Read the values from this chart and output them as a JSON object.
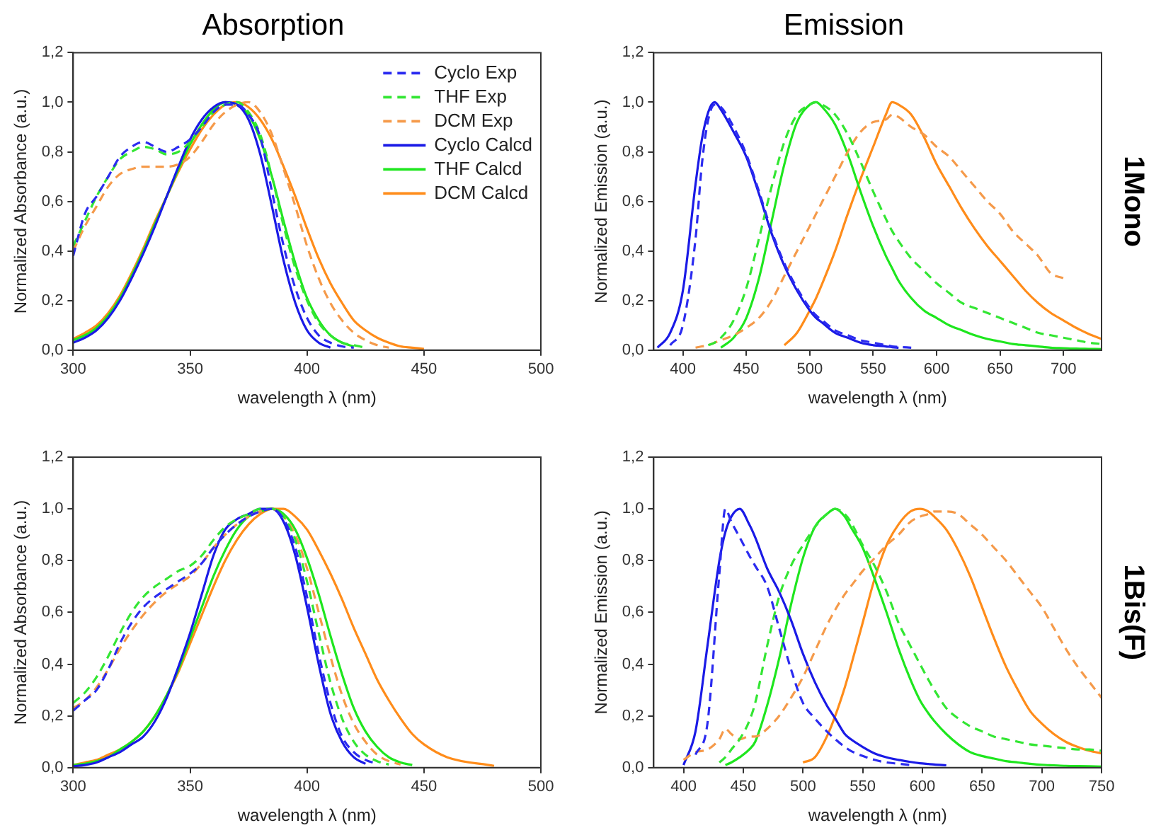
{
  "chart_data": [
    {
      "type": "line",
      "title": "Absorption",
      "xlabel": "wavelength λ (nm)",
      "ylabel": "Normalized Absorbance (a.u.)",
      "legend": "top right",
      "marker": "none",
      "xlim": [
        300,
        500
      ],
      "xticks": [
        300,
        350,
        400,
        450,
        500
      ],
      "ylim": [
        0,
        1.2
      ],
      "yticks": [
        {
          "value": 0,
          "label": "0,0"
        },
        {
          "value": 0.2,
          "label": "0,2"
        },
        {
          "value": 0.4,
          "label": "0,4"
        },
        {
          "value": 0.6,
          "label": "0,6"
        },
        {
          "value": 0.8,
          "label": "0,8"
        },
        {
          "value": 1,
          "label": "1,0"
        },
        {
          "value": 1.2,
          "label": "1,2"
        }
      ],
      "x": [
        300,
        305,
        310,
        315,
        320,
        325,
        330,
        335,
        340,
        345,
        350,
        355,
        360,
        365,
        370,
        375,
        380,
        385,
        390,
        395,
        400,
        405,
        410,
        415,
        420,
        425,
        430,
        435,
        440,
        445,
        450
      ],
      "series": [
        {
          "name": "Cyclo Exp",
          "color": "#2b2bf0",
          "line_style": "dashed",
          "values": [
            0.38,
            0.55,
            0.62,
            0.7,
            0.78,
            0.82,
            0.84,
            0.82,
            0.8,
            0.82,
            0.85,
            0.9,
            0.96,
            0.99,
            0.99,
            0.95,
            0.86,
            0.64,
            0.42,
            0.25,
            0.13,
            0.06,
            0.03,
            0.015,
            0.01,
            null,
            null,
            null,
            null,
            null,
            null
          ]
        },
        {
          "name": "THF Exp",
          "color": "#33e633",
          "line_style": "dashed",
          "values": [
            0.42,
            0.52,
            0.62,
            0.7,
            0.77,
            0.8,
            0.82,
            0.81,
            0.79,
            0.8,
            0.84,
            0.9,
            0.96,
            0.99,
            1.0,
            0.96,
            0.87,
            0.7,
            0.5,
            0.33,
            0.2,
            0.11,
            0.06,
            0.03,
            0.02,
            0.01,
            null,
            null,
            null,
            null,
            null
          ]
        },
        {
          "name": "DCM Exp",
          "color": "#f59a4a",
          "line_style": "dashed",
          "values": [
            0.4,
            0.5,
            0.58,
            0.66,
            0.71,
            0.73,
            0.74,
            0.74,
            0.74,
            0.75,
            0.78,
            0.84,
            0.91,
            0.96,
            0.99,
            1.0,
            0.96,
            0.87,
            0.73,
            0.58,
            0.42,
            0.29,
            0.19,
            0.12,
            0.07,
            0.04,
            0.02,
            0.01,
            null,
            null,
            null
          ]
        },
        {
          "name": "Cyclo Calcd",
          "color": "#1a1ae6",
          "line_style": "solid",
          "values": [
            0.03,
            0.05,
            0.08,
            0.13,
            0.2,
            0.29,
            0.39,
            0.5,
            0.62,
            0.74,
            0.85,
            0.93,
            0.98,
            1.0,
            0.99,
            0.93,
            0.79,
            0.58,
            0.36,
            0.19,
            0.08,
            0.03,
            0.01,
            null,
            null,
            null,
            null,
            null,
            null,
            null,
            null
          ]
        },
        {
          "name": "THF Calcd",
          "color": "#1ee61e",
          "line_style": "solid",
          "values": [
            0.04,
            0.06,
            0.09,
            0.14,
            0.21,
            0.3,
            0.4,
            0.51,
            0.62,
            0.73,
            0.83,
            0.91,
            0.97,
            1.0,
            0.99,
            0.95,
            0.85,
            0.7,
            0.52,
            0.35,
            0.21,
            0.12,
            0.06,
            0.03,
            0.015,
            null,
            null,
            null,
            null,
            null,
            null
          ]
        },
        {
          "name": "DCM Calcd",
          "color": "#ff8c1a",
          "line_style": "solid",
          "values": [
            0.045,
            0.07,
            0.1,
            0.15,
            0.22,
            0.31,
            0.41,
            0.52,
            0.62,
            0.72,
            0.81,
            0.89,
            0.95,
            0.99,
            1.0,
            0.98,
            0.93,
            0.85,
            0.74,
            0.62,
            0.49,
            0.37,
            0.27,
            0.19,
            0.12,
            0.08,
            0.05,
            0.03,
            0.015,
            0.01,
            0.005
          ]
        }
      ]
    },
    {
      "type": "line",
      "title": "Emission",
      "xlabel": "wavelength λ (nm)",
      "ylabel": "Normalized Emission (a.u.)",
      "marker": "none",
      "annotations": [
        "1Mono"
      ],
      "xlim": [
        377,
        730
      ],
      "xticks": [
        400,
        450,
        500,
        550,
        600,
        650,
        700
      ],
      "ylim": [
        0,
        1.2
      ],
      "yticks": [
        {
          "value": 0,
          "label": "0,0"
        },
        {
          "value": 0.2,
          "label": "0,2"
        },
        {
          "value": 0.4,
          "label": "0,4"
        },
        {
          "value": 0.6,
          "label": "0,6"
        },
        {
          "value": 0.8,
          "label": "0,8"
        },
        {
          "value": 1,
          "label": "1,0"
        },
        {
          "value": 1.2,
          "label": "1,2"
        }
      ],
      "x": [
        380,
        390,
        400,
        410,
        415,
        420,
        425,
        430,
        440,
        450,
        460,
        470,
        480,
        490,
        500,
        505,
        510,
        520,
        530,
        540,
        550,
        560,
        565,
        570,
        580,
        590,
        600,
        610,
        620,
        630,
        640,
        650,
        660,
        670,
        680,
        690,
        700,
        710,
        720,
        730
      ],
      "series": [
        {
          "color": "#2b2bf0",
          "line_style": "dashed",
          "values": [
            null,
            0.02,
            0.1,
            0.45,
            0.75,
            0.93,
            0.99,
            0.98,
            0.9,
            0.79,
            0.64,
            0.48,
            0.35,
            0.25,
            0.17,
            0.14,
            0.12,
            0.08,
            0.06,
            0.04,
            0.03,
            0.02,
            0.015,
            0.013,
            0.01,
            null,
            null,
            null,
            null,
            null,
            null,
            null,
            null,
            null,
            null,
            null,
            null,
            null,
            null,
            null
          ]
        },
        {
          "color": "#33e633",
          "line_style": "dashed",
          "values": [
            null,
            null,
            null,
            null,
            null,
            0.02,
            0.03,
            0.05,
            0.12,
            0.25,
            0.45,
            0.66,
            0.84,
            0.95,
            0.99,
            1.0,
            0.99,
            0.95,
            0.87,
            0.76,
            0.64,
            0.53,
            0.48,
            0.44,
            0.37,
            0.32,
            0.27,
            0.23,
            0.19,
            0.17,
            0.15,
            0.13,
            0.11,
            0.09,
            0.07,
            0.06,
            0.05,
            0.04,
            0.03,
            0.025
          ]
        },
        {
          "color": "#f59a4a",
          "line_style": "dashed",
          "values": [
            null,
            null,
            null,
            0.01,
            0.015,
            0.02,
            0.03,
            0.04,
            0.06,
            0.09,
            0.13,
            0.2,
            0.3,
            0.4,
            0.5,
            0.55,
            0.6,
            0.7,
            0.8,
            0.88,
            0.92,
            0.93,
            0.95,
            0.94,
            0.9,
            0.87,
            0.82,
            0.78,
            0.72,
            0.66,
            0.6,
            0.55,
            0.48,
            0.43,
            0.38,
            0.31,
            0.29,
            null,
            null,
            null
          ]
        },
        {
          "color": "#1a1ae6",
          "line_style": "solid",
          "values": [
            0.01,
            0.07,
            0.24,
            0.67,
            0.85,
            0.96,
            1.0,
            0.97,
            0.88,
            0.78,
            0.63,
            0.47,
            0.34,
            0.24,
            0.16,
            0.13,
            0.11,
            0.07,
            0.05,
            0.03,
            0.02,
            0.015,
            0.012,
            0.01,
            null,
            null,
            null,
            null,
            null,
            null,
            null,
            null,
            null,
            null,
            null,
            null,
            null,
            null,
            null,
            null
          ]
        },
        {
          "color": "#1ee61e",
          "line_style": "solid",
          "values": [
            null,
            null,
            null,
            null,
            null,
            null,
            null,
            0.01,
            0.05,
            0.13,
            0.29,
            0.52,
            0.75,
            0.92,
            0.99,
            1.0,
            0.98,
            0.91,
            0.79,
            0.64,
            0.5,
            0.38,
            0.33,
            0.28,
            0.21,
            0.16,
            0.13,
            0.1,
            0.08,
            0.06,
            0.045,
            0.035,
            0.025,
            0.02,
            0.015,
            0.01,
            0.008,
            0.006,
            0.005,
            0.004
          ]
        },
        {
          "color": "#ff8c1a",
          "line_style": "solid",
          "values": [
            null,
            null,
            null,
            null,
            null,
            null,
            null,
            null,
            null,
            null,
            null,
            null,
            0.02,
            0.07,
            0.16,
            0.21,
            0.27,
            0.4,
            0.55,
            0.69,
            0.82,
            0.95,
            1.0,
            0.99,
            0.95,
            0.86,
            0.75,
            0.66,
            0.57,
            0.49,
            0.42,
            0.36,
            0.3,
            0.24,
            0.19,
            0.15,
            0.12,
            0.09,
            0.065,
            0.045
          ]
        }
      ]
    },
    {
      "type": "line",
      "xlabel": "wavelength λ (nm)",
      "ylabel": "Normalized Absorbance (a.u.)",
      "marker": "none",
      "xlim": [
        300,
        500
      ],
      "xticks": [
        300,
        350,
        400,
        450,
        500
      ],
      "ylim": [
        0,
        1.2
      ],
      "yticks": [
        {
          "value": 0,
          "label": "0,0"
        },
        {
          "value": 0.2,
          "label": "0,2"
        },
        {
          "value": 0.4,
          "label": "0,4"
        },
        {
          "value": 0.6,
          "label": "0,6"
        },
        {
          "value": 0.8,
          "label": "0,8"
        },
        {
          "value": 1,
          "label": "1,0"
        },
        {
          "value": 1.2,
          "label": "1,2"
        }
      ],
      "x": [
        300,
        305,
        310,
        315,
        320,
        325,
        330,
        335,
        340,
        345,
        350,
        355,
        360,
        365,
        370,
        375,
        380,
        385,
        390,
        395,
        400,
        405,
        410,
        415,
        420,
        425,
        430,
        435,
        440,
        445,
        450,
        460,
        480
      ],
      "series": [
        {
          "color": "#2b2bf0",
          "line_style": "dashed",
          "values": [
            0.22,
            0.26,
            0.3,
            0.38,
            0.48,
            0.56,
            0.62,
            0.66,
            0.69,
            0.72,
            0.75,
            0.79,
            0.85,
            0.9,
            0.94,
            0.97,
            0.99,
            1.0,
            0.96,
            0.85,
            0.66,
            0.44,
            0.25,
            0.12,
            0.06,
            0.03,
            0.015,
            null,
            null,
            null,
            null,
            null,
            null
          ]
        },
        {
          "color": "#33e633",
          "line_style": "dashed",
          "values": [
            0.25,
            0.29,
            0.35,
            0.43,
            0.52,
            0.6,
            0.66,
            0.7,
            0.73,
            0.76,
            0.78,
            0.82,
            0.88,
            0.93,
            0.96,
            0.98,
            1.0,
            1.0,
            0.97,
            0.88,
            0.72,
            0.52,
            0.33,
            0.19,
            0.1,
            0.05,
            0.025,
            0.012,
            null,
            null,
            null,
            null,
            null
          ]
        },
        {
          "color": "#f59a4a",
          "line_style": "dashed",
          "values": [
            0.23,
            0.26,
            0.31,
            0.38,
            0.46,
            0.53,
            0.59,
            0.64,
            0.68,
            0.71,
            0.74,
            0.79,
            0.85,
            0.9,
            0.94,
            0.97,
            0.99,
            1.0,
            0.97,
            0.9,
            0.77,
            0.6,
            0.43,
            0.28,
            0.17,
            0.1,
            0.05,
            0.025,
            0.012,
            null,
            null,
            null,
            null
          ]
        },
        {
          "color": "#1a1ae6",
          "line_style": "solid",
          "values": [
            0.005,
            0.01,
            0.02,
            0.04,
            0.06,
            0.09,
            0.12,
            0.18,
            0.27,
            0.39,
            0.52,
            0.67,
            0.82,
            0.92,
            0.96,
            0.98,
            1.0,
            1.0,
            0.95,
            0.82,
            0.62,
            0.4,
            0.21,
            0.1,
            0.04,
            0.015,
            null,
            null,
            null,
            null,
            null,
            null,
            null
          ]
        },
        {
          "color": "#1ee61e",
          "line_style": "solid",
          "values": [
            0.01,
            0.015,
            0.025,
            0.04,
            0.07,
            0.1,
            0.14,
            0.2,
            0.28,
            0.38,
            0.5,
            0.62,
            0.74,
            0.84,
            0.92,
            0.97,
            0.99,
            1.0,
            0.98,
            0.92,
            0.81,
            0.67,
            0.51,
            0.36,
            0.23,
            0.14,
            0.08,
            0.04,
            0.02,
            0.01,
            null,
            null,
            null
          ]
        },
        {
          "color": "#ff8c1a",
          "line_style": "solid",
          "values": [
            0.01,
            0.02,
            0.03,
            0.05,
            0.07,
            0.1,
            0.14,
            0.2,
            0.28,
            0.37,
            0.48,
            0.59,
            0.7,
            0.8,
            0.88,
            0.94,
            0.98,
            1.0,
            1.0,
            0.97,
            0.92,
            0.84,
            0.75,
            0.65,
            0.54,
            0.44,
            0.34,
            0.26,
            0.19,
            0.13,
            0.09,
            0.04,
            0.007
          ]
        }
      ]
    },
    {
      "type": "line",
      "xlabel": "wavelength λ (nm)",
      "ylabel": "Normalized Emission (a.u.)",
      "marker": "none",
      "annotations": [
        "1Bis(F)"
      ],
      "xlim": [
        375,
        750
      ],
      "xticks": [
        400,
        450,
        500,
        550,
        600,
        650,
        700,
        750
      ],
      "ylim": [
        0,
        1.2
      ],
      "yticks": [
        {
          "value": 0,
          "label": "0,0"
        },
        {
          "value": 0.2,
          "label": "0,2"
        },
        {
          "value": 0.4,
          "label": "0,4"
        },
        {
          "value": 0.6,
          "label": "0,6"
        },
        {
          "value": 0.8,
          "label": "0,8"
        },
        {
          "value": 1,
          "label": "1,0"
        },
        {
          "value": 1.2,
          "label": "1,2"
        }
      ],
      "x": [
        400,
        410,
        420,
        430,
        435,
        440,
        447,
        455,
        460,
        470,
        480,
        490,
        500,
        510,
        520,
        527,
        535,
        540,
        550,
        560,
        570,
        580,
        590,
        598,
        605,
        610,
        620,
        630,
        640,
        650,
        660,
        670,
        680,
        690,
        700,
        710,
        720,
        730,
        740,
        750
      ],
      "series": [
        {
          "color": "#2b2bf0",
          "line_style": "dashed",
          "values": [
            null,
            0.05,
            0.17,
            0.75,
            1.0,
            0.95,
            0.89,
            0.82,
            0.78,
            0.7,
            0.54,
            0.38,
            0.25,
            0.19,
            0.14,
            0.11,
            0.08,
            0.065,
            0.045,
            0.03,
            0.02,
            0.015,
            0.01,
            null,
            null,
            null,
            null,
            null,
            null,
            null,
            null,
            null,
            null,
            null,
            null,
            null,
            null,
            null,
            null,
            null
          ]
        },
        {
          "color": "#33e633",
          "line_style": "dashed",
          "values": [
            null,
            null,
            null,
            0.02,
            0.04,
            0.07,
            0.11,
            0.18,
            0.25,
            0.47,
            0.66,
            0.78,
            0.86,
            0.93,
            0.98,
            1.0,
            0.98,
            0.95,
            0.86,
            0.78,
            0.68,
            0.56,
            0.47,
            0.4,
            0.34,
            0.3,
            0.23,
            0.19,
            0.16,
            0.14,
            0.12,
            0.11,
            0.1,
            0.09,
            0.085,
            0.08,
            0.075,
            0.07,
            0.07,
            0.065
          ]
        },
        {
          "color": "#f59a4a",
          "line_style": "dashed",
          "values": [
            0.03,
            0.06,
            0.07,
            0.11,
            0.15,
            0.13,
            0.11,
            0.12,
            0.12,
            0.15,
            0.2,
            0.27,
            0.35,
            0.45,
            0.55,
            0.61,
            0.67,
            0.7,
            0.76,
            0.81,
            0.86,
            0.9,
            0.95,
            0.97,
            0.98,
            0.99,
            0.99,
            0.98,
            0.94,
            0.9,
            0.85,
            0.8,
            0.74,
            0.68,
            0.62,
            0.54,
            0.46,
            0.39,
            0.33,
            0.27
          ]
        },
        {
          "color": "#1a1ae6",
          "line_style": "solid",
          "values": [
            0.01,
            0.14,
            0.47,
            0.8,
            0.91,
            0.97,
            1.0,
            0.94,
            0.89,
            0.77,
            0.68,
            0.57,
            0.44,
            0.33,
            0.24,
            0.19,
            0.13,
            0.11,
            0.08,
            0.055,
            0.04,
            0.03,
            0.022,
            0.017,
            0.014,
            0.012,
            0.009,
            null,
            null,
            null,
            null,
            null,
            null,
            null,
            null,
            null,
            null,
            null,
            null,
            null
          ]
        },
        {
          "color": "#1ee61e",
          "line_style": "solid",
          "values": [
            null,
            null,
            null,
            null,
            0.01,
            0.02,
            0.04,
            0.07,
            0.1,
            0.24,
            0.42,
            0.63,
            0.81,
            0.93,
            0.98,
            1.0,
            0.97,
            0.93,
            0.85,
            0.73,
            0.6,
            0.46,
            0.34,
            0.26,
            0.21,
            0.18,
            0.13,
            0.09,
            0.06,
            0.045,
            0.035,
            0.025,
            0.02,
            0.015,
            0.011,
            0.009,
            0.007,
            0.006,
            0.005,
            0.004
          ]
        },
        {
          "color": "#ff8c1a",
          "line_style": "solid",
          "values": [
            null,
            null,
            null,
            null,
            null,
            null,
            null,
            null,
            null,
            null,
            null,
            null,
            0.02,
            0.04,
            0.12,
            0.2,
            0.31,
            0.39,
            0.56,
            0.73,
            0.86,
            0.94,
            0.99,
            1.0,
            0.99,
            0.97,
            0.92,
            0.84,
            0.74,
            0.62,
            0.5,
            0.39,
            0.3,
            0.22,
            0.17,
            0.13,
            0.1,
            0.08,
            0.065,
            0.055
          ]
        }
      ]
    }
  ]
}
